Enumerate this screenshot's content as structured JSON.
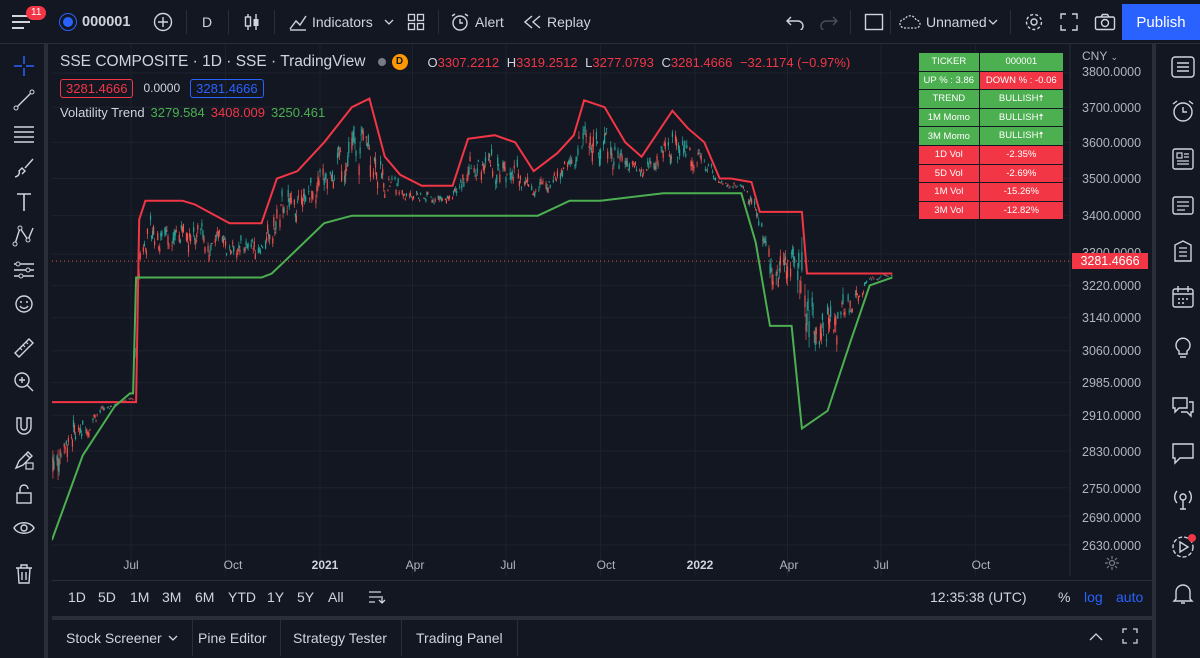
{
  "topbar": {
    "notifications": "11",
    "symbol": "000001",
    "interval": "D",
    "indicators": "Indicators",
    "alert": "Alert",
    "replay": "Replay",
    "layout_name": "Unnamed",
    "publish": "Publish"
  },
  "legend": {
    "title": "SSE COMPOSITE · 1D · SSE · TradingView",
    "open_label": "O",
    "open": "3307.2212",
    "high_label": "H",
    "high": "3319.2512",
    "low_label": "L",
    "low": "3277.0793",
    "close_label": "C",
    "close": "3281.4666",
    "change": "−32.1174 (−0.97%)",
    "bid": "3281.4666",
    "spread": "0.0000",
    "ask": "3281.4666",
    "indicator_name": "Volatility Trend",
    "ind_v1": "3279.584",
    "ind_v2": "3408.009",
    "ind_v3": "3250.461"
  },
  "info_table": [
    [
      "TICKER",
      "000001"
    ],
    [
      "UP % : 3.86",
      "DOWN % : -0.06"
    ],
    [
      "TREND",
      "BULLISH🠅"
    ],
    [
      "1M Momo",
      "BULLISH🠅"
    ],
    [
      "3M Momo",
      "BULLISH🠅"
    ],
    [
      "1D Vol",
      "-2.35%"
    ],
    [
      "5D Vol",
      "-2.69%"
    ],
    [
      "1M Vol",
      "-15.26%"
    ],
    [
      "3M Vol",
      "-12.82%"
    ]
  ],
  "colors": {
    "up": "#26a69a",
    "down": "#ef5350",
    "upper_band": "#f23645",
    "lower_band": "#4caf50",
    "table_green": "#4caf50",
    "table_red": "#f23645",
    "accent": "#2962ff"
  },
  "price_axis": {
    "currency": "CNY",
    "current_price": "3281.4666",
    "labels": [
      "3800.0000",
      "3700.0000",
      "3600.0000",
      "3500.0000",
      "3400.0000",
      "3300.0000",
      "3220.0000",
      "3140.0000",
      "3060.0000",
      "2985.0000",
      "2910.0000",
      "2830.0000",
      "2750.0000",
      "2690.0000",
      "2630.0000"
    ]
  },
  "time_axis": [
    "Jul",
    "Oct",
    "2021",
    "Apr",
    "Jul",
    "Oct",
    "2022",
    "Apr",
    "Jul",
    "Oct"
  ],
  "time_axis_bold": [
    "2021",
    "2022"
  ],
  "range_bar": {
    "ranges": [
      "1D",
      "5D",
      "1M",
      "3M",
      "6M",
      "YTD",
      "1Y",
      "5Y",
      "All"
    ],
    "clock": "12:35:38 (UTC)",
    "percent": "%",
    "log": "log",
    "auto": "auto"
  },
  "panels": [
    "Stock Screener",
    "Pine Editor",
    "Strategy Tester",
    "Trading Panel"
  ],
  "chart_data": {
    "type": "candlestick",
    "symbol": "SSE COMPOSITE",
    "y_scale": "log",
    "ylim": [
      2600,
      3820
    ],
    "x_range": [
      "2020-04",
      "2022-10"
    ],
    "series": [
      {
        "name": "upper",
        "points": [
          [
            "2020-04-15",
            2940
          ],
          [
            "2020-07-06",
            2940
          ],
          [
            "2020-07-09",
            3390
          ],
          [
            "2020-07-15",
            3440
          ],
          [
            "2020-08-20",
            3440
          ],
          [
            "2020-09-01",
            3430
          ],
          [
            "2020-10-05",
            3380
          ],
          [
            "2020-11-05",
            3380
          ],
          [
            "2020-11-20",
            3500
          ],
          [
            "2020-12-10",
            3520
          ],
          [
            "2021-01-05",
            3600
          ],
          [
            "2021-02-01",
            3700
          ],
          [
            "2021-02-18",
            3725
          ],
          [
            "2021-03-05",
            3560
          ],
          [
            "2021-03-20",
            3510
          ],
          [
            "2021-04-10",
            3480
          ],
          [
            "2021-05-10",
            3480
          ],
          [
            "2021-05-25",
            3610
          ],
          [
            "2021-06-20",
            3620
          ],
          [
            "2021-07-10",
            3600
          ],
          [
            "2021-07-28",
            3520
          ],
          [
            "2021-08-20",
            3570
          ],
          [
            "2021-09-05",
            3620
          ],
          [
            "2021-09-15",
            3720
          ],
          [
            "2021-10-05",
            3700
          ],
          [
            "2021-10-25",
            3600
          ],
          [
            "2021-11-10",
            3560
          ],
          [
            "2021-12-10",
            3690
          ],
          [
            "2021-12-25",
            3640
          ],
          [
            "2022-01-10",
            3600
          ],
          [
            "2022-01-25",
            3500
          ],
          [
            "2022-02-05",
            3500
          ],
          [
            "2022-02-25",
            3490
          ],
          [
            "2022-03-05",
            3410
          ],
          [
            "2022-04-01",
            3410
          ],
          [
            "2022-04-15",
            3410
          ],
          [
            "2022-04-20",
            3250
          ],
          [
            "2022-06-01",
            3250
          ],
          [
            "2022-06-20",
            3250
          ],
          [
            "2022-06-25",
            3250
          ],
          [
            "2022-07-12",
            3250
          ]
        ]
      },
      {
        "name": "lower",
        "points": [
          [
            "2020-04-15",
            2640
          ],
          [
            "2020-05-15",
            2820
          ],
          [
            "2020-06-15",
            2930
          ],
          [
            "2020-06-30",
            2960
          ],
          [
            "2020-07-03",
            2960
          ],
          [
            "2020-07-06",
            3240
          ],
          [
            "2020-09-10",
            3240
          ],
          [
            "2020-10-10",
            3240
          ],
          [
            "2020-11-05",
            3240
          ],
          [
            "2020-11-15",
            3250
          ],
          [
            "2020-12-05",
            3300
          ],
          [
            "2021-01-05",
            3380
          ],
          [
            "2021-02-01",
            3400
          ],
          [
            "2021-03-01",
            3400
          ],
          [
            "2021-06-01",
            3400
          ],
          [
            "2021-08-01",
            3400
          ],
          [
            "2021-09-01",
            3440
          ],
          [
            "2021-10-01",
            3440
          ],
          [
            "2021-12-01",
            3460
          ],
          [
            "2022-01-15",
            3460
          ],
          [
            "2022-02-15",
            3460
          ],
          [
            "2022-03-01",
            3330
          ],
          [
            "2022-03-15",
            3120
          ],
          [
            "2022-04-05",
            3120
          ],
          [
            "2022-04-15",
            2880
          ],
          [
            "2022-05-10",
            2920
          ],
          [
            "2022-06-01",
            3080
          ],
          [
            "2022-06-20",
            3220
          ],
          [
            "2022-07-12",
            3240
          ]
        ]
      }
    ],
    "ohlc_note": "daily candles from Apr 2020 to Jul 2022; last close 3281.4666"
  }
}
